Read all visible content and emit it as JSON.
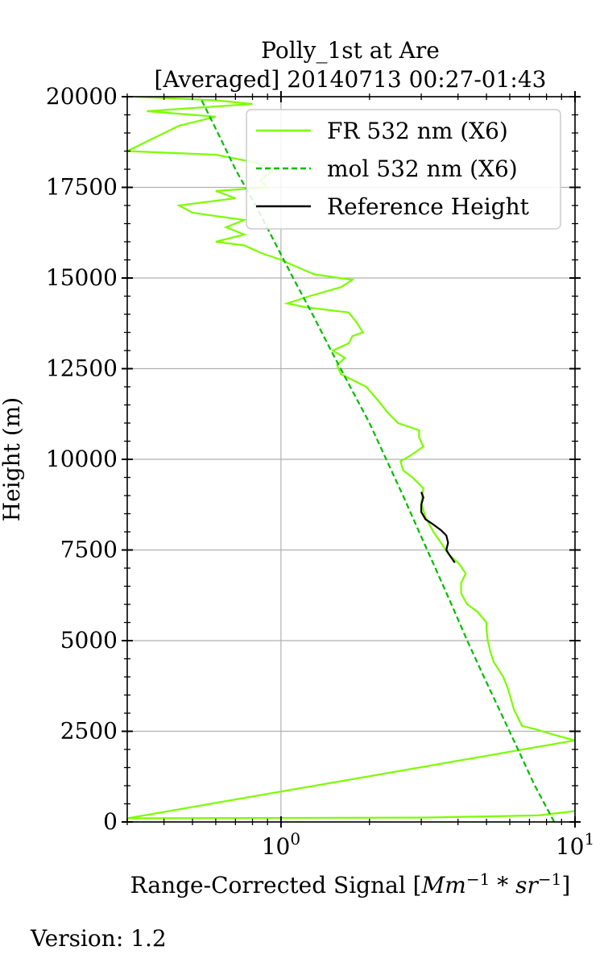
{
  "chart_data": {
    "type": "line",
    "title": "Polly_1st at Are",
    "subtitle": "[Averaged] 20140713 00:27-01:43",
    "xlabel_prefix": "Range-Corrected Signal [",
    "xlabel_math": "Mm",
    "xlabel_sup1": "−1",
    "xlabel_mid": " * ",
    "xlabel_math2": "sr",
    "xlabel_sup2": "−1",
    "xlabel_suffix": "]",
    "ylabel": "Height (m)",
    "xscale": "log",
    "xlim": [
      0.3,
      10
    ],
    "ylim": [
      0,
      20000
    ],
    "grid": true,
    "legend_position": "top-right",
    "yticks": [
      {
        "value": 0,
        "label": "0"
      },
      {
        "value": 2500,
        "label": "2500"
      },
      {
        "value": 5000,
        "label": "5000"
      },
      {
        "value": 7500,
        "label": "7500"
      },
      {
        "value": 10000,
        "label": "10000"
      },
      {
        "value": 12500,
        "label": "12500"
      },
      {
        "value": 15000,
        "label": "15000"
      },
      {
        "value": 17500,
        "label": "17500"
      },
      {
        "value": 20000,
        "label": "20000"
      }
    ],
    "xticks": [
      {
        "value": 1,
        "base": "10",
        "exp": "0"
      },
      {
        "value": 10,
        "base": "10",
        "exp": "1"
      }
    ],
    "series": [
      {
        "name": "FR 532 nm (X6)",
        "color": "#7cfc00",
        "dash": "solid",
        "points": [
          [
            10.0,
            300
          ],
          [
            7.5,
            180
          ],
          [
            3.0,
            120
          ],
          [
            0.3,
            100
          ],
          [
            10.0,
            2250
          ],
          [
            8.5,
            2400
          ],
          [
            7.4,
            2550
          ],
          [
            6.6,
            2650
          ],
          [
            6.2,
            3100
          ],
          [
            6.0,
            3500
          ],
          [
            5.9,
            3700
          ],
          [
            5.7,
            4000
          ],
          [
            5.3,
            4400
          ],
          [
            5.15,
            4700
          ],
          [
            5.05,
            5000
          ],
          [
            5.0,
            5300
          ],
          [
            5.0,
            5500
          ],
          [
            4.65,
            5800
          ],
          [
            4.3,
            6000
          ],
          [
            4.1,
            6300
          ],
          [
            4.1,
            6600
          ],
          [
            4.25,
            6850
          ],
          [
            4.05,
            7100
          ],
          [
            3.7,
            7400
          ],
          [
            3.5,
            7700
          ],
          [
            3.3,
            8000
          ],
          [
            3.1,
            8400
          ],
          [
            3.0,
            8800
          ],
          [
            3.05,
            9200
          ],
          [
            2.8,
            9500
          ],
          [
            2.6,
            9700
          ],
          [
            2.55,
            9950
          ],
          [
            2.75,
            10100
          ],
          [
            3.05,
            10350
          ],
          [
            2.95,
            10600
          ],
          [
            2.95,
            10800
          ],
          [
            2.5,
            11000
          ],
          [
            2.3,
            11300
          ],
          [
            2.15,
            11600
          ],
          [
            1.95,
            12000
          ],
          [
            1.6,
            12350
          ],
          [
            1.55,
            12600
          ],
          [
            1.65,
            12800
          ],
          [
            1.5,
            13000
          ],
          [
            1.7,
            13200
          ],
          [
            1.75,
            13400
          ],
          [
            1.9,
            13500
          ],
          [
            1.8,
            13800
          ],
          [
            1.7,
            14050
          ],
          [
            1.2,
            14200
          ],
          [
            1.05,
            14300
          ],
          [
            1.25,
            14500
          ],
          [
            1.6,
            14750
          ],
          [
            1.75,
            14950
          ],
          [
            1.3,
            15100
          ],
          [
            1.1,
            15350
          ],
          [
            1.0,
            15500
          ],
          [
            0.85,
            15700
          ],
          [
            0.75,
            15900
          ],
          [
            0.6,
            16000
          ],
          [
            0.75,
            16200
          ],
          [
            0.65,
            16400
          ],
          [
            0.75,
            16600
          ],
          [
            0.5,
            16800
          ],
          [
            0.45,
            17000
          ],
          [
            0.7,
            17200
          ],
          [
            0.6,
            17400
          ],
          [
            0.9,
            17500
          ],
          [
            0.85,
            17700
          ],
          [
            0.95,
            18000
          ],
          [
            0.8,
            18200
          ],
          [
            0.6,
            18400
          ],
          [
            0.3,
            18500
          ],
          [
            0.45,
            19200
          ],
          [
            0.6,
            19450
          ],
          [
            0.35,
            19600
          ],
          [
            0.8,
            19800
          ],
          [
            0.6,
            19900
          ],
          [
            0.32,
            20000
          ]
        ]
      },
      {
        "name": "mol 532 nm (X6)",
        "color": "#00bb00",
        "dash": "dashed",
        "points": [
          [
            8.5,
            0
          ],
          [
            7.3,
            1000
          ],
          [
            6.4,
            2000
          ],
          [
            5.6,
            3000
          ],
          [
            4.9,
            4000
          ],
          [
            4.3,
            5000
          ],
          [
            3.8,
            6000
          ],
          [
            3.35,
            7000
          ],
          [
            2.95,
            8000
          ],
          [
            2.6,
            9000
          ],
          [
            2.28,
            10000
          ],
          [
            2.0,
            11000
          ],
          [
            1.72,
            12000
          ],
          [
            1.48,
            13000
          ],
          [
            1.28,
            14000
          ],
          [
            1.1,
            15000
          ],
          [
            0.95,
            16000
          ],
          [
            0.82,
            17000
          ],
          [
            0.7,
            18000
          ],
          [
            0.61,
            19000
          ],
          [
            0.53,
            20000
          ]
        ]
      },
      {
        "name": "Reference Height",
        "color": "#000000",
        "dash": "solid",
        "points": [
          [
            3.9,
            7150
          ],
          [
            3.75,
            7350
          ],
          [
            3.65,
            7500
          ],
          [
            3.7,
            7700
          ],
          [
            3.65,
            7900
          ],
          [
            3.5,
            8050
          ],
          [
            3.3,
            8200
          ],
          [
            3.1,
            8350
          ],
          [
            3.0,
            8550
          ],
          [
            3.0,
            8750
          ],
          [
            3.05,
            8950
          ],
          [
            3.0,
            9100
          ]
        ]
      }
    ]
  },
  "footer": {
    "version_text": "Version: 1.2"
  }
}
